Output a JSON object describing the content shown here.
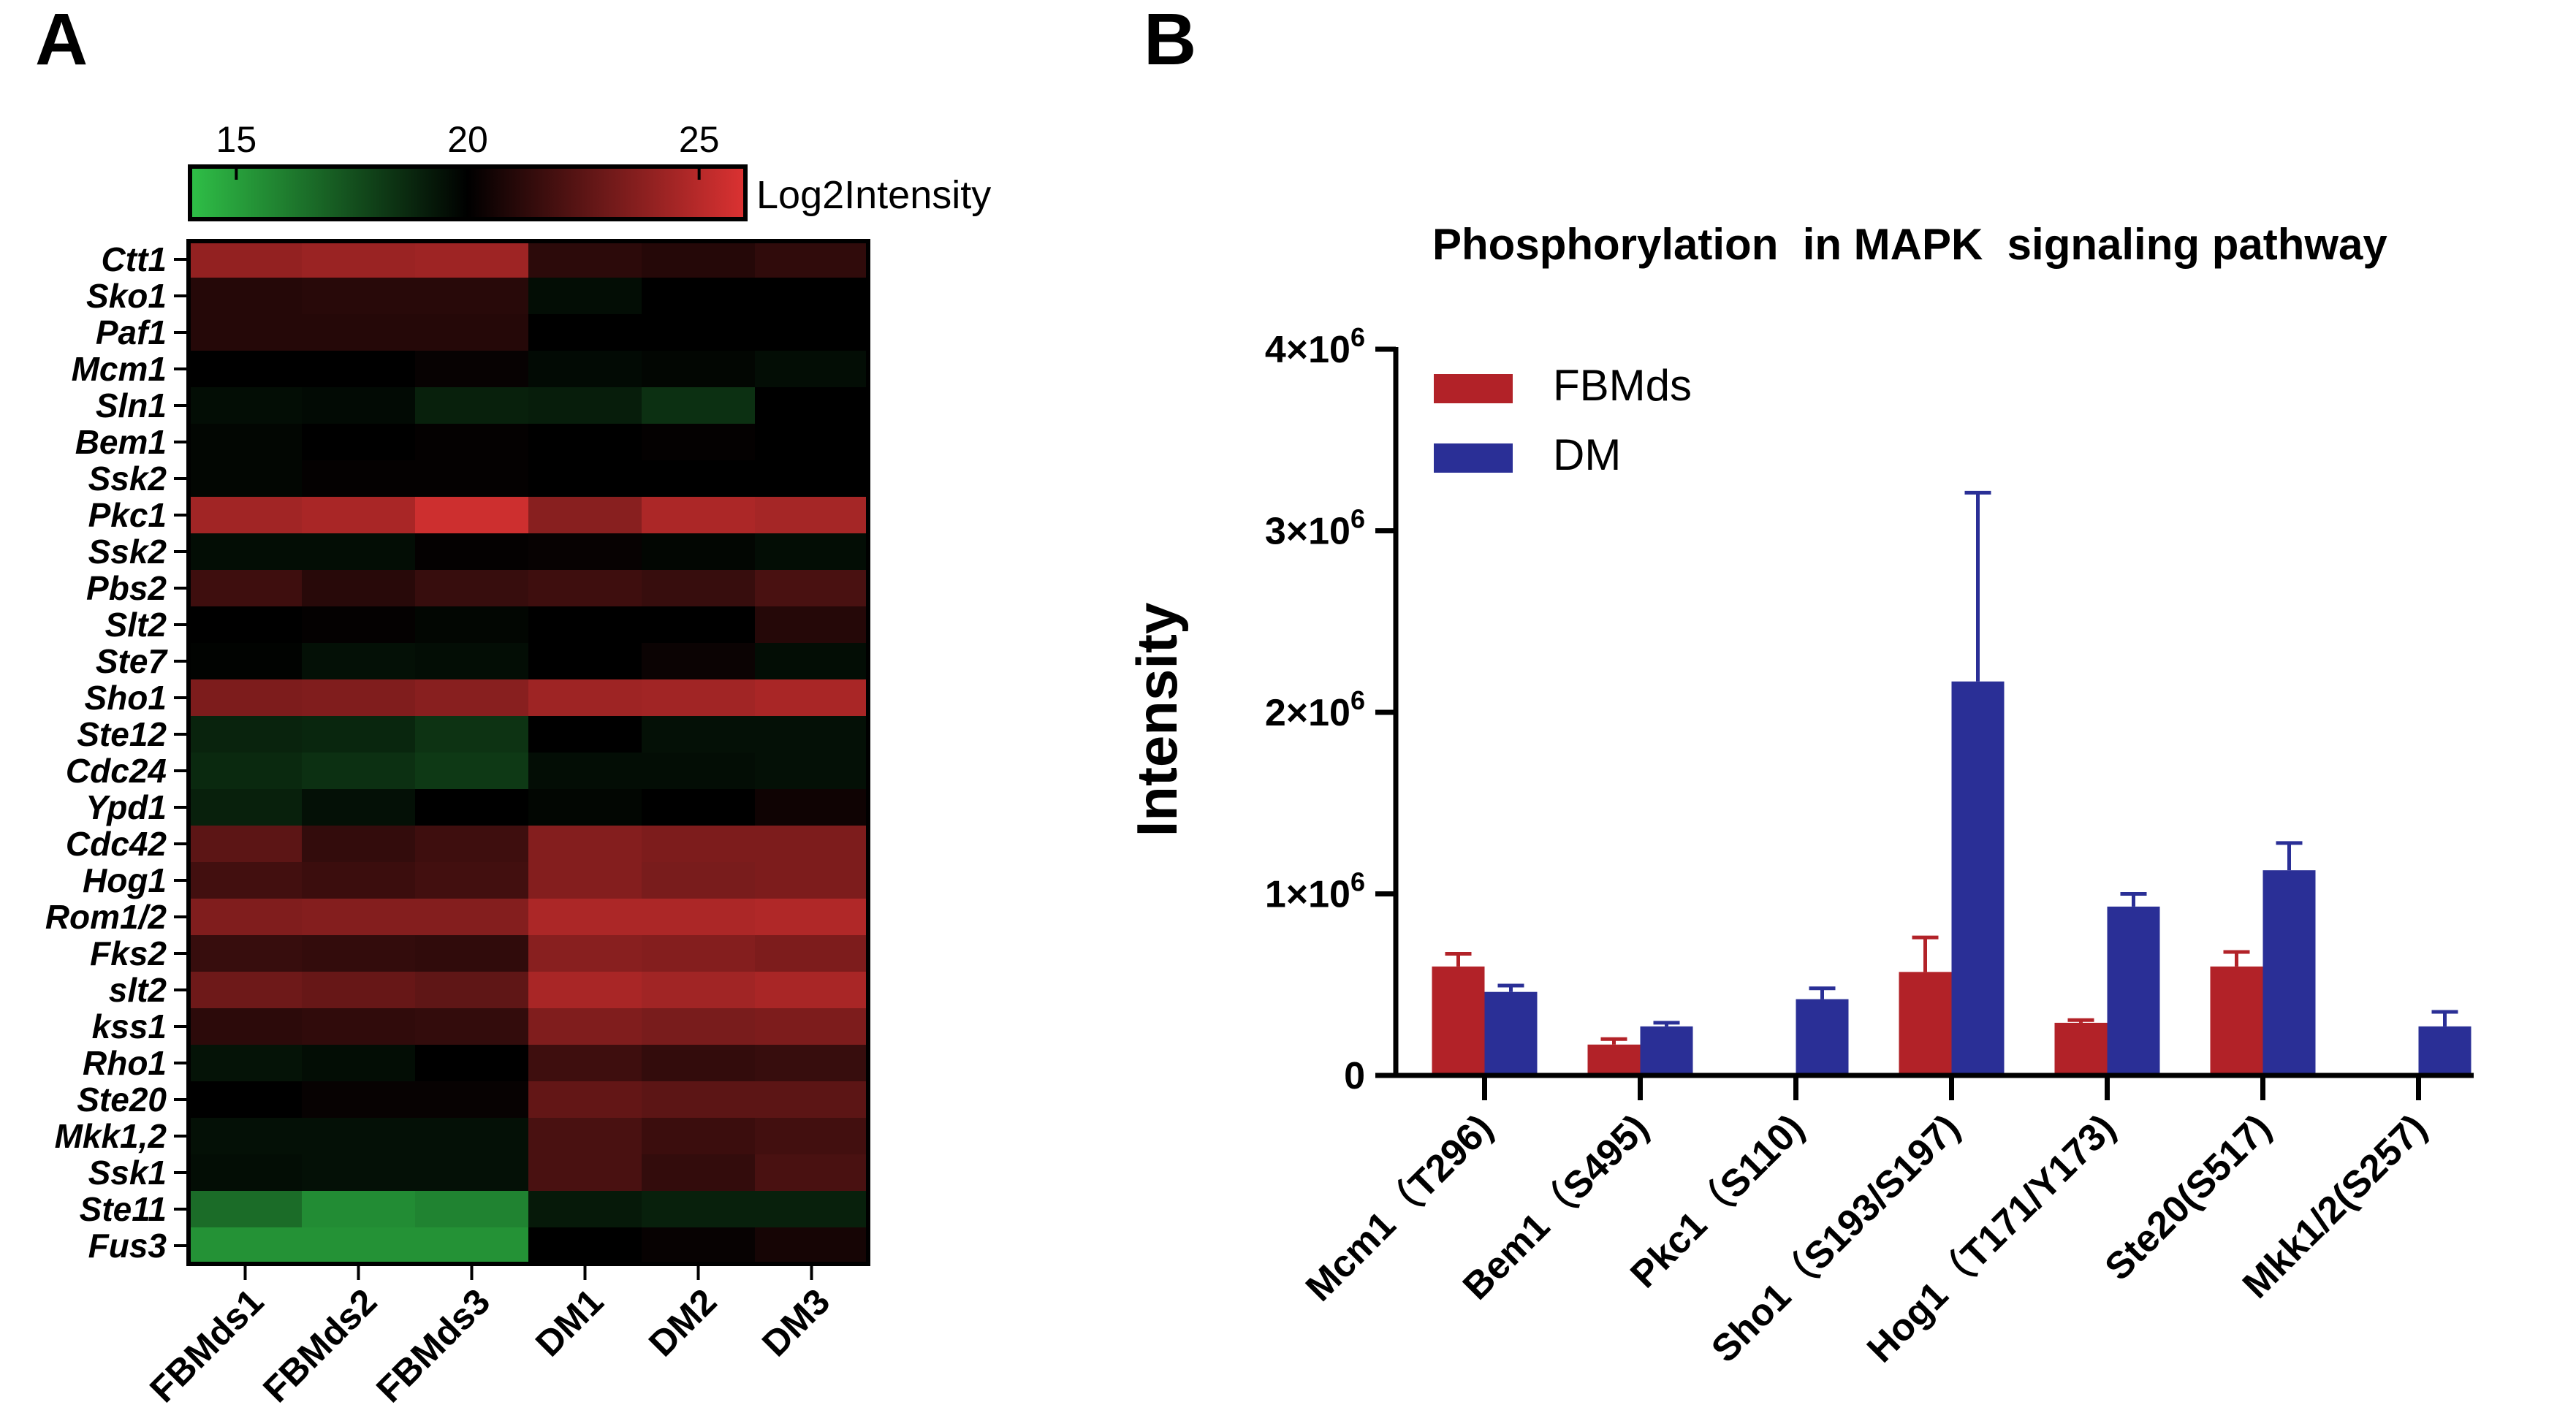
{
  "panels": {
    "a_label": "A",
    "b_label": "B"
  },
  "colors": {
    "low": "#2fbf47",
    "mid": "#000000",
    "high": "#dc3232",
    "fbmds": "#b22228",
    "dm": "#2a2f96",
    "axis": "#000000"
  },
  "chart_data": [
    {
      "type": "heatmap",
      "colorbar": {
        "label": "Log2Intensity",
        "ticks": [
          15,
          20,
          25
        ],
        "range": [
          14,
          26
        ]
      },
      "columns": [
        "FBMds1",
        "FBMds2",
        "FBMds3",
        "DM1",
        "DM2",
        "DM3"
      ],
      "rows": [
        "Ctt1",
        "Sko1",
        "Paf1",
        "Mcm1",
        "Sln1",
        "Bem1",
        "Ssk2",
        "Pkc1",
        "Ssk2",
        "Pbs2",
        "Slt2",
        "Ste7",
        "Sho1",
        "Ste12",
        "Cdc24",
        "Ypd1",
        "Cdc42",
        "Hog1",
        "Rom1/2",
        "Fks2",
        "slt2",
        "kss1",
        "Rho1",
        "Ste20",
        "Mkk1,2",
        "Ssk1",
        "Ste11",
        "Fus3"
      ],
      "values": [
        [
          24.0,
          24.2,
          24.3,
          21.2,
          21.0,
          21.3
        ],
        [
          21.0,
          21.1,
          21.1,
          19.6,
          20.0,
          20.0
        ],
        [
          21.0,
          21.0,
          21.0,
          20.0,
          20.0,
          20.0
        ],
        [
          20.0,
          20.0,
          20.2,
          19.7,
          19.8,
          19.6
        ],
        [
          19.6,
          19.7,
          19.0,
          19.1,
          18.5,
          20.0
        ],
        [
          19.8,
          20.0,
          20.1,
          20.0,
          20.1,
          20.0
        ],
        [
          19.8,
          20.1,
          20.1,
          20.0,
          20.0,
          20.0
        ],
        [
          24.4,
          24.6,
          25.6,
          23.7,
          24.7,
          24.5
        ],
        [
          19.6,
          19.6,
          20.1,
          20.2,
          19.8,
          19.6
        ],
        [
          21.7,
          21.1,
          21.5,
          21.7,
          21.5,
          22.0
        ],
        [
          20.0,
          20.1,
          19.8,
          20.0,
          20.0,
          21.0
        ],
        [
          19.9,
          19.5,
          19.6,
          20.0,
          20.3,
          19.6
        ],
        [
          23.4,
          23.5,
          23.7,
          24.3,
          24.4,
          24.6
        ],
        [
          18.9,
          18.8,
          18.4,
          20.0,
          19.5,
          19.5
        ],
        [
          18.7,
          18.5,
          18.2,
          19.6,
          19.6,
          19.5
        ],
        [
          19.0,
          19.5,
          20.0,
          19.8,
          20.0,
          20.4
        ],
        [
          22.5,
          21.4,
          21.7,
          23.6,
          23.4,
          23.4
        ],
        [
          21.8,
          21.6,
          21.8,
          23.6,
          23.3,
          23.4
        ],
        [
          23.5,
          23.6,
          23.6,
          24.7,
          24.7,
          24.8
        ],
        [
          21.5,
          21.4,
          21.3,
          23.7,
          23.6,
          23.4
        ],
        [
          23.0,
          22.8,
          22.6,
          24.6,
          24.4,
          24.6
        ],
        [
          21.2,
          21.3,
          21.4,
          23.5,
          23.3,
          23.4
        ],
        [
          19.4,
          19.6,
          20.0,
          21.7,
          21.4,
          21.5
        ],
        [
          20.0,
          20.2,
          20.2,
          22.7,
          22.5,
          22.5
        ],
        [
          19.5,
          19.5,
          19.5,
          22.0,
          21.6,
          21.8
        ],
        [
          19.6,
          19.5,
          19.5,
          22.0,
          21.4,
          22.0
        ],
        [
          16.6,
          15.6,
          15.9,
          19.2,
          19.0,
          19.0
        ],
        [
          15.4,
          15.4,
          15.4,
          20.0,
          20.2,
          20.6
        ]
      ]
    },
    {
      "type": "bar",
      "title": "Phosphorylation  in MAPK  signaling pathway",
      "ylabel": "Intensity",
      "xlabel": "",
      "ylim": [
        0,
        4000000
      ],
      "yticks": [
        {
          "value": 0,
          "label": "0"
        },
        {
          "value": 1000000,
          "label": "1×10"
        },
        {
          "value": 2000000,
          "label": "2×10"
        },
        {
          "value": 3000000,
          "label": "3×10"
        },
        {
          "value": 4000000,
          "label": "4×10"
        }
      ],
      "ytick_exponent": "6",
      "legend_position": "top-left",
      "categories": [
        "Mcm1（T296)",
        "Bem1（S495)",
        "Pkc1（S110)",
        "Sho1（S193/S197)",
        "Hog1（T171/Y173)",
        "Ste20(S517)",
        "Mkk1/2(S257)"
      ],
      "series": [
        {
          "name": "FBMds",
          "values": [
            600000,
            170000,
            0,
            570000,
            290000,
            600000,
            0
          ],
          "error": [
            70000,
            30000,
            0,
            190000,
            15000,
            80000,
            0
          ]
        },
        {
          "name": "DM",
          "values": [
            460000,
            270000,
            420000,
            2170000,
            930000,
            1130000,
            270000
          ],
          "error": [
            35000,
            20000,
            60000,
            1040000,
            70000,
            150000,
            80000
          ]
        }
      ]
    }
  ]
}
